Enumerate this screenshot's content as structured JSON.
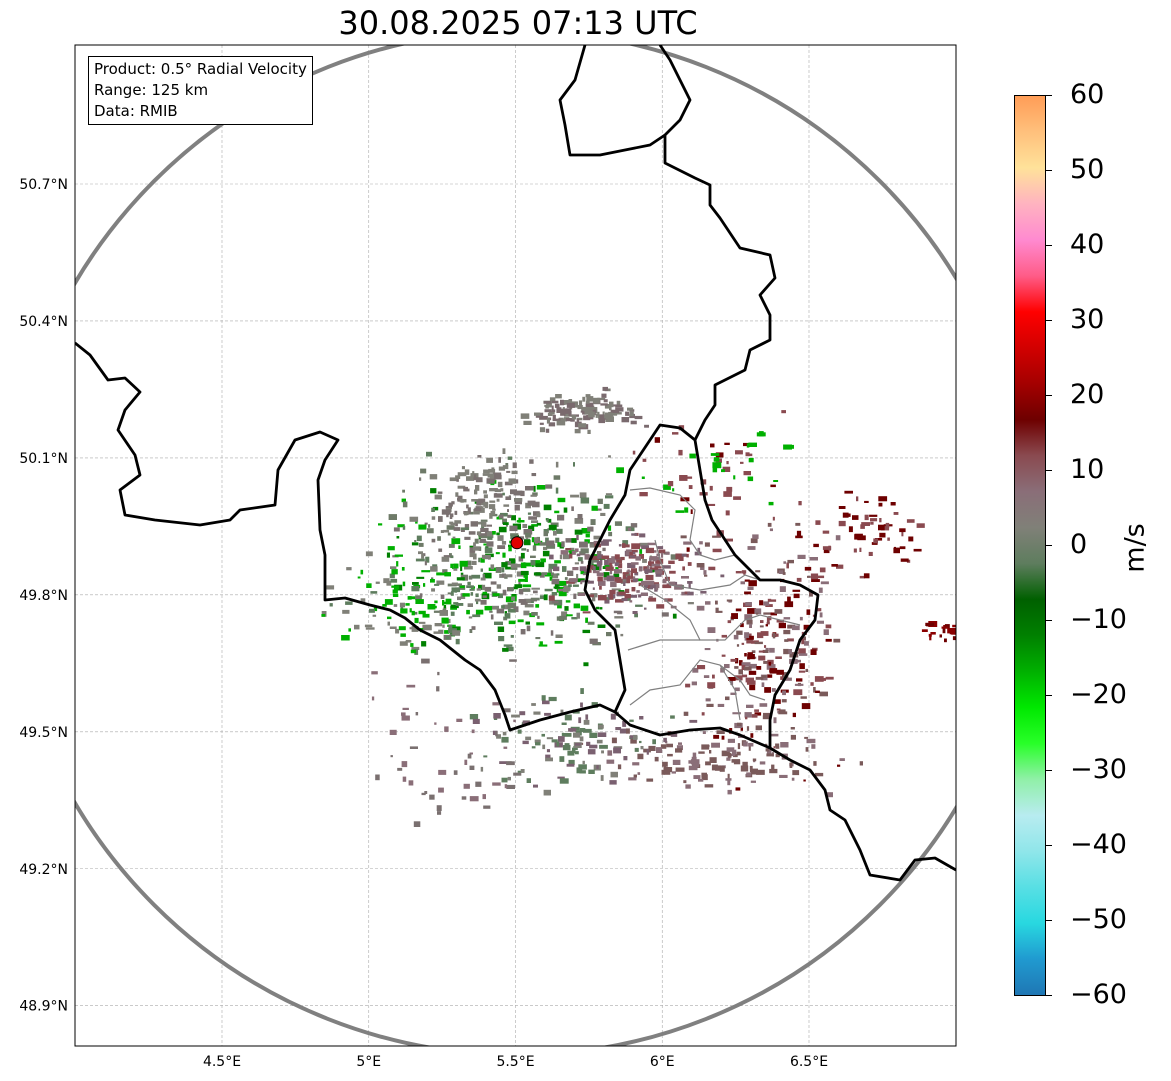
{
  "title": "30.08.2025 07:13 UTC",
  "info": {
    "line1": "Product: 0.5° Radial Velocity",
    "line2": "Range: 125 km",
    "line3": "Data: RMIB"
  },
  "axes": {
    "lon_ticks": [
      {
        "v": 4.5,
        "label": "4.5°E"
      },
      {
        "v": 5,
        "label": "5°E"
      },
      {
        "v": 5.5,
        "label": "5.5°E"
      },
      {
        "v": 6,
        "label": "6°E"
      },
      {
        "v": 6.5,
        "label": "6.5°E"
      }
    ],
    "lat_ticks": [
      {
        "v": 50.7,
        "label": "50.7°N"
      },
      {
        "v": 50.4,
        "label": "50.4°N"
      },
      {
        "v": 50.1,
        "label": "50.1°N"
      },
      {
        "v": 49.8,
        "label": "49.8°N"
      },
      {
        "v": 49.5,
        "label": "49.5°N"
      },
      {
        "v": 49.2,
        "label": "49.2°N"
      },
      {
        "v": 48.9,
        "label": "48.9°N"
      }
    ]
  },
  "radar_site": {
    "lon": 5.505,
    "lat": 49.914,
    "color": "#e00000"
  },
  "range_ring_km": 125,
  "colorbar": {
    "unit": "m/s",
    "min": -60,
    "max": 60,
    "ticks": [
      {
        "v": 60,
        "label": "60"
      },
      {
        "v": 50,
        "label": "50"
      },
      {
        "v": 40,
        "label": "40"
      },
      {
        "v": 30,
        "label": "30"
      },
      {
        "v": 20,
        "label": "20"
      },
      {
        "v": 10,
        "label": "10"
      },
      {
        "v": 0,
        "label": "0"
      },
      {
        "v": -10,
        "label": "−10"
      },
      {
        "v": -20,
        "label": "−20"
      },
      {
        "v": -30,
        "label": "−30"
      },
      {
        "v": -40,
        "label": "−40"
      },
      {
        "v": -50,
        "label": "−50"
      },
      {
        "v": -60,
        "label": "−60"
      }
    ],
    "colors": [
      "#ff9d57",
      "#ffc07c",
      "#ffe29a",
      "#ffb3c0",
      "#ff8ad0",
      "#ff5c88",
      "#ff0000",
      "#d20000",
      "#a40000",
      "#6e0000",
      "#8a4a50",
      "#8a6e78",
      "#808078",
      "#5e7d5e",
      "#006000",
      "#008000",
      "#00b000",
      "#00e800",
      "#28ff28",
      "#90f0a8",
      "#b8ecf0",
      "#90e6ea",
      "#58dfe4",
      "#28d8e0",
      "#209ad0",
      "#1f77b4"
    ]
  }
}
